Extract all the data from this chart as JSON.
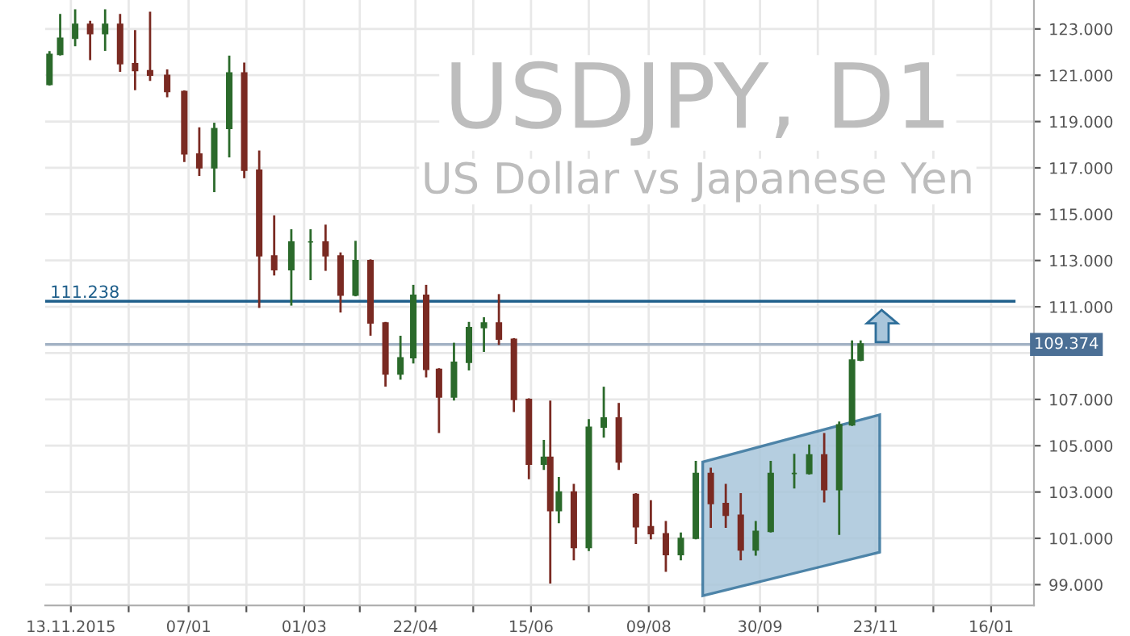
{
  "chart_data": {
    "type": "candlestick",
    "title": "USDJPY, D1",
    "subtitle": "US Dollar vs Japanese Yen",
    "x": [
      "2015-11-03",
      "2015-11-08",
      "2015-11-15",
      "2015-11-22",
      "2015-11-29",
      "2015-12-06",
      "2015-12-13",
      "2015-12-20",
      "2015-12-28",
      "2016-01-05",
      "2016-01-12",
      "2016-01-19",
      "2016-01-26",
      "2016-02-02",
      "2016-02-09",
      "2016-02-16",
      "2016-02-24",
      "2016-03-04",
      "2016-03-11",
      "2016-03-18",
      "2016-03-25",
      "2016-04-01",
      "2016-04-08",
      "2016-04-15",
      "2016-04-21",
      "2016-04-27",
      "2016-05-03",
      "2016-05-10",
      "2016-05-17",
      "2016-05-24",
      "2016-05-31",
      "2016-06-07",
      "2016-06-14",
      "2016-06-21",
      "2016-06-24",
      "2016-06-28",
      "2016-07-05",
      "2016-07-12",
      "2016-07-19",
      "2016-07-26",
      "2016-08-03",
      "2016-08-10",
      "2016-08-17",
      "2016-08-24",
      "2016-08-31",
      "2016-09-07",
      "2016-09-14",
      "2016-09-21",
      "2016-09-28",
      "2016-10-05",
      "2016-10-16",
      "2016-10-23",
      "2016-10-30",
      "2016-11-06",
      "2016-11-12",
      "2016-11-16"
    ],
    "ohlc": [
      [
        120.6,
        122.0,
        120.6,
        121.9
      ],
      [
        121.9,
        123.6,
        121.9,
        122.6
      ],
      [
        122.6,
        123.8,
        122.3,
        123.2
      ],
      [
        123.2,
        123.3,
        121.7,
        122.8
      ],
      [
        122.8,
        123.8,
        122.1,
        123.2
      ],
      [
        123.2,
        123.6,
        121.2,
        121.5
      ],
      [
        121.5,
        122.9,
        120.4,
        121.2
      ],
      [
        121.2,
        123.7,
        120.8,
        121.0
      ],
      [
        121.0,
        121.2,
        120.1,
        120.3
      ],
      [
        120.3,
        120.3,
        117.3,
        117.6
      ],
      [
        117.6,
        118.7,
        116.7,
        117.0
      ],
      [
        117.0,
        118.9,
        116.0,
        118.7
      ],
      [
        118.7,
        121.8,
        117.5,
        121.1
      ],
      [
        121.1,
        121.5,
        116.6,
        116.9
      ],
      [
        116.9,
        117.7,
        111.0,
        113.2
      ],
      [
        113.2,
        114.9,
        112.4,
        112.6
      ],
      [
        112.6,
        114.3,
        111.1,
        113.8
      ],
      [
        113.8,
        114.3,
        112.2,
        113.8
      ],
      [
        113.8,
        114.5,
        112.6,
        113.2
      ],
      [
        113.2,
        113.3,
        110.8,
        111.5
      ],
      [
        111.5,
        113.8,
        111.5,
        113.0
      ],
      [
        113.0,
        113.0,
        109.8,
        110.3
      ],
      [
        110.3,
        110.3,
        107.6,
        108.1
      ],
      [
        108.1,
        109.7,
        107.9,
        108.8
      ],
      [
        108.8,
        111.9,
        108.6,
        111.5
      ],
      [
        111.5,
        111.9,
        108.0,
        108.3
      ],
      [
        108.3,
        108.3,
        105.6,
        107.1
      ],
      [
        107.1,
        109.4,
        107.0,
        108.6
      ],
      [
        108.6,
        110.3,
        108.3,
        110.1
      ],
      [
        110.1,
        110.5,
        109.1,
        110.3
      ],
      [
        110.3,
        111.5,
        109.4,
        109.6
      ],
      [
        109.6,
        109.6,
        106.5,
        107.0
      ],
      [
        107.0,
        107.0,
        103.6,
        104.2
      ],
      [
        104.2,
        105.2,
        104.0,
        104.5
      ],
      [
        104.5,
        106.9,
        99.1,
        102.2
      ],
      [
        102.2,
        103.6,
        101.7,
        103.0
      ],
      [
        103.0,
        103.3,
        100.1,
        100.6
      ],
      [
        100.6,
        106.1,
        100.5,
        105.8
      ],
      [
        105.8,
        107.5,
        105.4,
        106.2
      ],
      [
        106.2,
        106.8,
        104.0,
        104.3
      ],
      [
        102.9,
        102.9,
        100.8,
        101.5
      ],
      [
        101.5,
        102.6,
        101.0,
        101.2
      ],
      [
        101.2,
        101.7,
        99.6,
        100.3
      ],
      [
        100.3,
        101.2,
        100.1,
        101.0
      ],
      [
        101.0,
        104.3,
        101.0,
        103.8
      ],
      [
        103.8,
        104.0,
        101.5,
        102.5
      ],
      [
        102.5,
        103.3,
        101.5,
        102.0
      ],
      [
        102.0,
        102.9,
        100.1,
        100.5
      ],
      [
        100.5,
        101.7,
        100.3,
        101.3
      ],
      [
        101.3,
        104.3,
        101.3,
        103.8
      ],
      [
        103.8,
        104.6,
        103.2,
        103.8
      ],
      [
        103.8,
        105.0,
        103.8,
        104.6
      ],
      [
        104.6,
        105.5,
        102.6,
        103.1
      ],
      [
        103.1,
        106.0,
        101.2,
        105.9
      ],
      [
        105.9,
        109.5,
        105.9,
        108.7
      ],
      [
        108.7,
        109.5,
        108.7,
        109.4
      ]
    ],
    "colors": [
      "#2b6a2b",
      "#2b6a2b",
      "#2b6a2b",
      "#7a2a22",
      "#2b6a2b",
      "#7a2a22",
      "#7a2a22",
      "#7a2a22",
      "#7a2a22",
      "#7a2a22",
      "#7a2a22",
      "#2b6a2b",
      "#2b6a2b",
      "#7a2a22",
      "#7a2a22",
      "#7a2a22",
      "#2b6a2b",
      "#2b6a2b",
      "#7a2a22",
      "#7a2a22",
      "#2b6a2b",
      "#7a2a22",
      "#7a2a22",
      "#2b6a2b",
      "#2b6a2b",
      "#7a2a22",
      "#7a2a22",
      "#2b6a2b",
      "#2b6a2b",
      "#2b6a2b",
      "#7a2a22",
      "#7a2a22",
      "#7a2a22",
      "#2b6a2b",
      "#7a2a22",
      "#2b6a2b",
      "#7a2a22",
      "#2b6a2b",
      "#2b6a2b",
      "#7a2a22",
      "#7a2a22",
      "#7a2a22",
      "#7a2a22",
      "#2b6a2b",
      "#2b6a2b",
      "#7a2a22",
      "#7a2a22",
      "#7a2a22",
      "#2b6a2b",
      "#2b6a2b",
      "#2b6a2b",
      "#2b6a2b",
      "#7a2a22",
      "#2b6a2b",
      "#2b6a2b",
      "#2b6a2b"
    ],
    "xlim": [
      "2015-11-01",
      "2017-02-05"
    ],
    "ylim": [
      98.1,
      124.25
    ],
    "xticks": [
      {
        "value": "2015-11-13",
        "label": "13.11.2015"
      },
      {
        "value": "2015-12-10",
        "label": null
      },
      {
        "value": "2016-01-07",
        "label": "07/01"
      },
      {
        "value": "2016-02-03",
        "label": null
      },
      {
        "value": "2016-03-01",
        "label": "01/03"
      },
      {
        "value": "2016-03-27",
        "label": null
      },
      {
        "value": "2016-04-22",
        "label": "22/04"
      },
      {
        "value": "2016-05-19",
        "label": null
      },
      {
        "value": "2016-06-15",
        "label": "15/06"
      },
      {
        "value": "2016-07-12",
        "label": null
      },
      {
        "value": "2016-08-09",
        "label": "09/08"
      },
      {
        "value": "2016-09-04",
        "label": null
      },
      {
        "value": "2016-09-30",
        "label": "30/09"
      },
      {
        "value": "2016-10-27",
        "label": null
      },
      {
        "value": "2016-11-23",
        "label": "23/11"
      },
      {
        "value": "2016-12-20",
        "label": null
      },
      {
        "value": "2017-01-16",
        "label": "16/01"
      }
    ],
    "yticks": [
      {
        "value": 99,
        "label": "99.000"
      },
      {
        "value": 101,
        "label": "101.000"
      },
      {
        "value": 103,
        "label": "103.000"
      },
      {
        "value": 105,
        "label": "105.000"
      },
      {
        "value": 107,
        "label": "107.000"
      },
      {
        "value": 109,
        "label": null
      },
      {
        "value": 111,
        "label": "111.000"
      },
      {
        "value": 113,
        "label": "113.000"
      },
      {
        "value": 115,
        "label": "115.000"
      },
      {
        "value": 117,
        "label": "117.000"
      },
      {
        "value": 119,
        "label": "119.000"
      },
      {
        "value": 121,
        "label": "121.000"
      },
      {
        "value": 123,
        "label": "123.000"
      }
    ],
    "ref_lines": [
      {
        "axis": "y",
        "value": 111.238,
        "label": "111.238",
        "color": "#1f5f8b"
      },
      {
        "axis": "y",
        "value": 109.374,
        "label": "109.374",
        "color": "#a3b2c4"
      }
    ],
    "grid": true
  }
}
